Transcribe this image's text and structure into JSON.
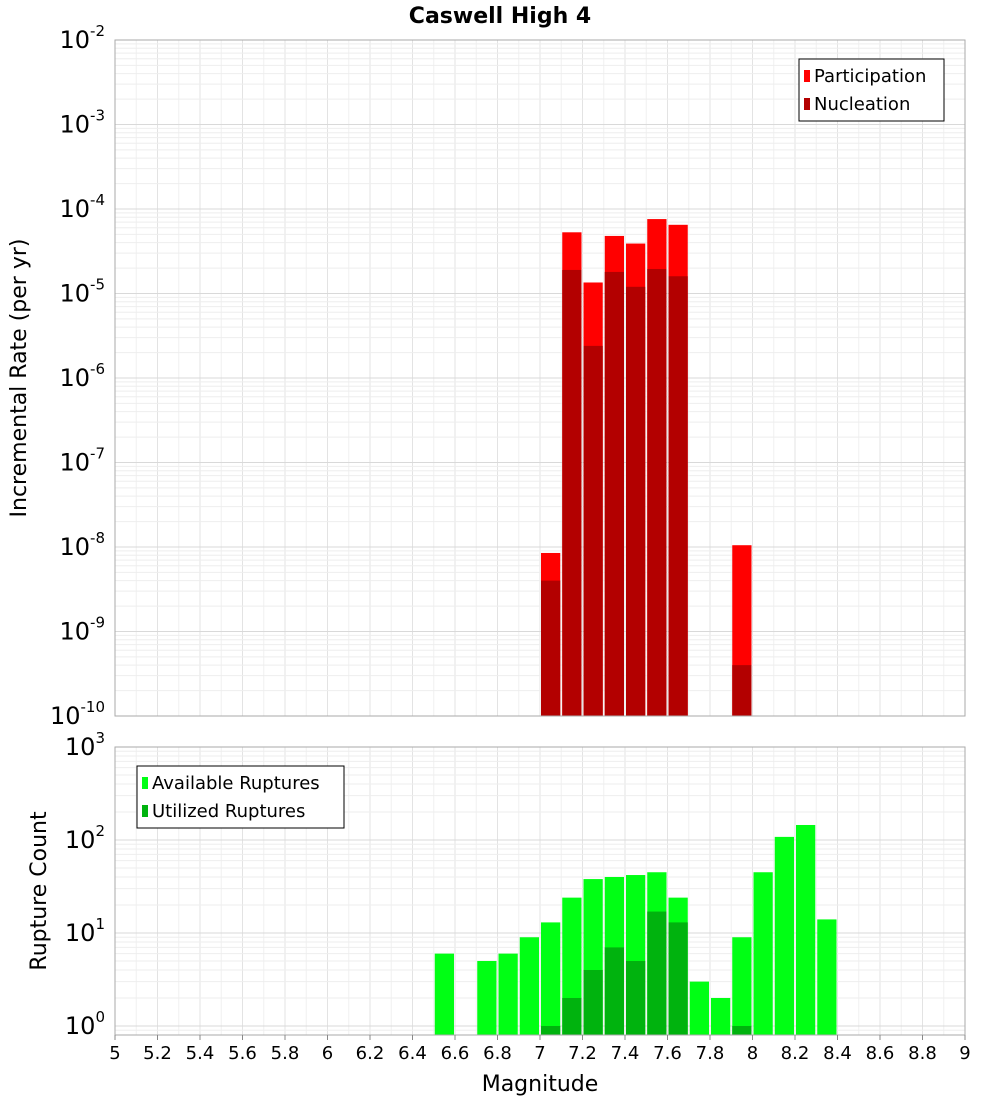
{
  "title": "Caswell High 4",
  "xlabel": "Magnitude",
  "chart_data": [
    {
      "type": "bar",
      "name": "rate-panel",
      "ylabel": "Incremental Rate (per yr)",
      "yscale": "log",
      "ylim": [
        1e-10,
        0.01
      ],
      "xlim": [
        5,
        9
      ],
      "bin_width": 0.1,
      "grid": true,
      "legend_placement": "top-right",
      "y_ticks": [
        {
          "base": "10",
          "exp": "-10",
          "value": 1e-10
        },
        {
          "base": "10",
          "exp": "-9",
          "value": 1e-09
        },
        {
          "base": "10",
          "exp": "-8",
          "value": 1e-08
        },
        {
          "base": "10",
          "exp": "-7",
          "value": 1e-07
        },
        {
          "base": "10",
          "exp": "-6",
          "value": 1e-06
        },
        {
          "base": "10",
          "exp": "-5",
          "value": 1e-05
        },
        {
          "base": "10",
          "exp": "-4",
          "value": 0.0001
        },
        {
          "base": "10",
          "exp": "-3",
          "value": 0.001
        },
        {
          "base": "10",
          "exp": "-2",
          "value": 0.01
        }
      ],
      "series": [
        {
          "name": "Participation",
          "color": "#ff0000",
          "x": [
            7.05,
            7.15,
            7.25,
            7.35,
            7.45,
            7.55,
            7.65,
            7.95
          ],
          "values": [
            8.5e-09,
            5.3e-05,
            1.35e-05,
            4.8e-05,
            3.9e-05,
            7.6e-05,
            6.5e-05,
            1.05e-08
          ]
        },
        {
          "name": "Nucleation",
          "color": "#b30000",
          "x": [
            7.05,
            7.15,
            7.25,
            7.35,
            7.45,
            7.55,
            7.65,
            7.95
          ],
          "values": [
            4e-09,
            1.9e-05,
            2.4e-06,
            1.8e-05,
            1.2e-05,
            1.95e-05,
            1.6e-05,
            4e-10
          ]
        }
      ]
    },
    {
      "type": "bar",
      "name": "count-panel",
      "ylabel": "Rupture Count",
      "yscale": "log",
      "ylim": [
        0.8,
        1000
      ],
      "xlim": [
        5,
        9
      ],
      "bin_width": 0.1,
      "grid": true,
      "legend_placement": "top-left",
      "y_ticks": [
        {
          "base": "10",
          "exp": "0",
          "value": 1
        },
        {
          "base": "10",
          "exp": "1",
          "value": 10
        },
        {
          "base": "10",
          "exp": "2",
          "value": 100
        },
        {
          "base": "10",
          "exp": "3",
          "value": 1000
        }
      ],
      "series": [
        {
          "name": "Available Ruptures",
          "color": "#00ff14",
          "x": [
            6.55,
            6.75,
            6.85,
            6.95,
            7.05,
            7.15,
            7.25,
            7.35,
            7.45,
            7.55,
            7.65,
            7.75,
            7.85,
            7.95,
            8.05,
            8.15,
            8.25,
            8.35
          ],
          "values": [
            6,
            5,
            6,
            9,
            13,
            24,
            38,
            40,
            42,
            45,
            24,
            3,
            2,
            9,
            45,
            108,
            145,
            14
          ]
        },
        {
          "name": "Utilized Ruptures",
          "color": "#00b30e",
          "x": [
            7.05,
            7.15,
            7.25,
            7.35,
            7.45,
            7.55,
            7.65,
            7.95
          ],
          "values": [
            1,
            2,
            4,
            7,
            5,
            17,
            13,
            1
          ]
        }
      ]
    }
  ],
  "x_ticks": [
    "5",
    "5.2",
    "5.4",
    "5.6",
    "5.8",
    "6",
    "6.2",
    "6.4",
    "6.6",
    "6.8",
    "7",
    "7.2",
    "7.4",
    "7.6",
    "7.8",
    "8",
    "8.2",
    "8.4",
    "8.6",
    "8.8",
    "9"
  ]
}
